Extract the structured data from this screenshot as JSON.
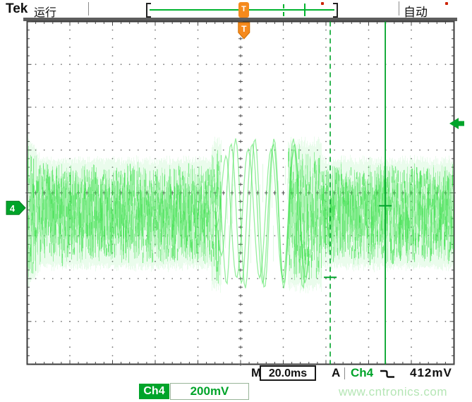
{
  "header": {
    "brand": "Tek",
    "run_status": "运行",
    "acquisition_mode": "自动",
    "trigger_marker": "T"
  },
  "readouts": {
    "timebase_label": "M",
    "timebase_value": "20.0ms",
    "trigger_label": "A",
    "trigger_source": "Ch4",
    "trigger_slope": "falling-edge",
    "trigger_level": "412mV"
  },
  "channel": {
    "badge": "Ch4",
    "scale": "200mV",
    "marker_number": "4"
  },
  "watermark": {
    "text": "www.cntronics.com"
  },
  "colors": {
    "waveform": "#3fe14f",
    "ui_green": "#00a42a",
    "orange": "#f58a1d",
    "grid_dot": "#777777",
    "center_hatch": "#4f4f4f",
    "edge_tick": "#444444",
    "frame": "#3a3a3a",
    "bar": "#5d5d5d",
    "watermark": "#b5e6b5",
    "red_indicator": "#cc2200"
  },
  "chart_data": {
    "type": "line",
    "instrument": "oscilloscope-display",
    "title": "",
    "x_axis": {
      "units_per_div": "20.0ms",
      "divisions": 10
    },
    "y_axis": {
      "units_per_div": "200mV",
      "divisions": 8,
      "channel": "Ch4"
    },
    "trigger": {
      "source": "Ch4",
      "slope": "falling",
      "level": "412mV",
      "mode": "自动",
      "position_div": 0.08
    },
    "waveform": {
      "description": "Wideband noise band of ~2.3 div peak-to-peak centered ~0.5 div below center, with a large ~3.5 div low-frequency oscillation burst around the trigger point and a wider noise patch at the left screen edge",
      "noise_band_center_div": -0.48,
      "noise_band_half_amplitude_div": 1.13,
      "burst_start_div": -0.68,
      "burst_end_div": 1.9,
      "burst_amplitude_div": 1.75,
      "burst_period_div": 0.45,
      "left_edge_half_amplitude_div": 1.6
    },
    "cursors": {
      "dashed_time_div": 2.1,
      "solid_time_div": 3.39,
      "dashed_tick_level_div": -1.97,
      "solid_tick_level_div": -0.3
    },
    "markers": {
      "trigger_level_arrow_div": 1.62,
      "channel4_ground_div": -0.35
    }
  }
}
